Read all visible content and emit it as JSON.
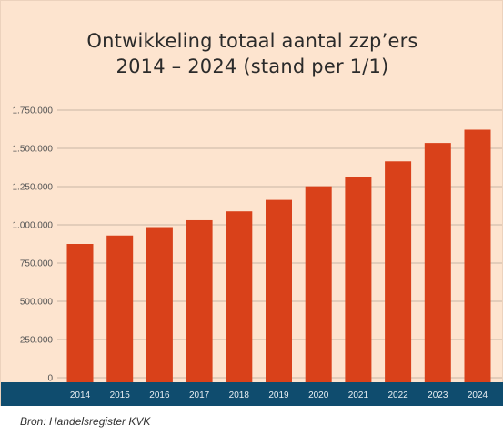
{
  "chart_data": {
    "type": "bar",
    "title_line1": "Ontwikkeling totaal aantal zzp’ers",
    "title_line2": "2014 – 2024 (stand per 1/1)",
    "categories": [
      "2014",
      "2015",
      "2016",
      "2017",
      "2018",
      "2019",
      "2020",
      "2021",
      "2022",
      "2023",
      "2024"
    ],
    "values": [
      875000,
      930000,
      985000,
      1030000,
      1088000,
      1163000,
      1252000,
      1310000,
      1415000,
      1535000,
      1622000
    ],
    "ylim": [
      0,
      1750000
    ],
    "yticks": [
      0,
      250000,
      500000,
      750000,
      1000000,
      1250000,
      1500000,
      1750000
    ],
    "ytick_labels": [
      "0",
      "250.000",
      "500.000",
      "750.000",
      "1.000.000",
      "1.250.000",
      "1.500.000",
      "1.750.000"
    ],
    "grid": true,
    "bar_color": "#d9411a",
    "axis_band_color": "#0f4c6e",
    "background_color": "#fde4cf",
    "gridline_color": "#c9b6a6"
  },
  "source_text": "Bron: Handelsregister KVK"
}
